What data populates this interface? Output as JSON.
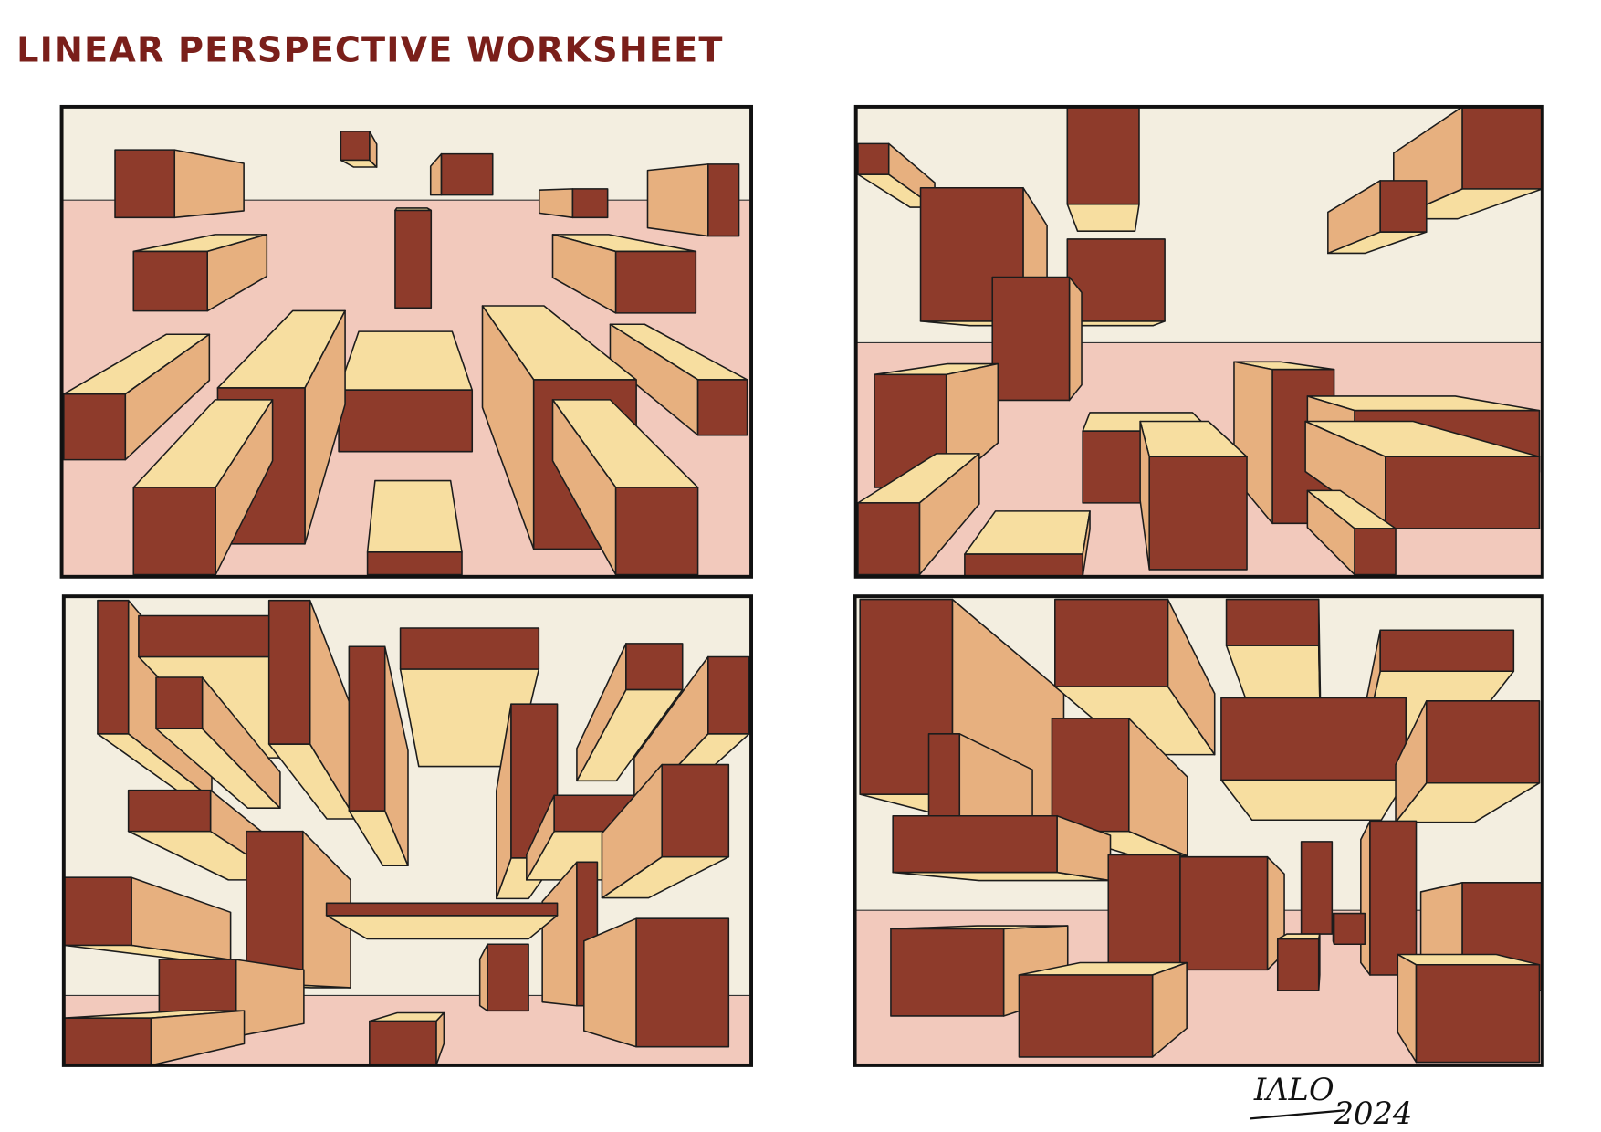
{
  "header": {
    "title": "LINEAR PERSPECTIVE WORKSHEET"
  },
  "signature": {
    "name": "IΛLO",
    "year": "2024"
  }
}
